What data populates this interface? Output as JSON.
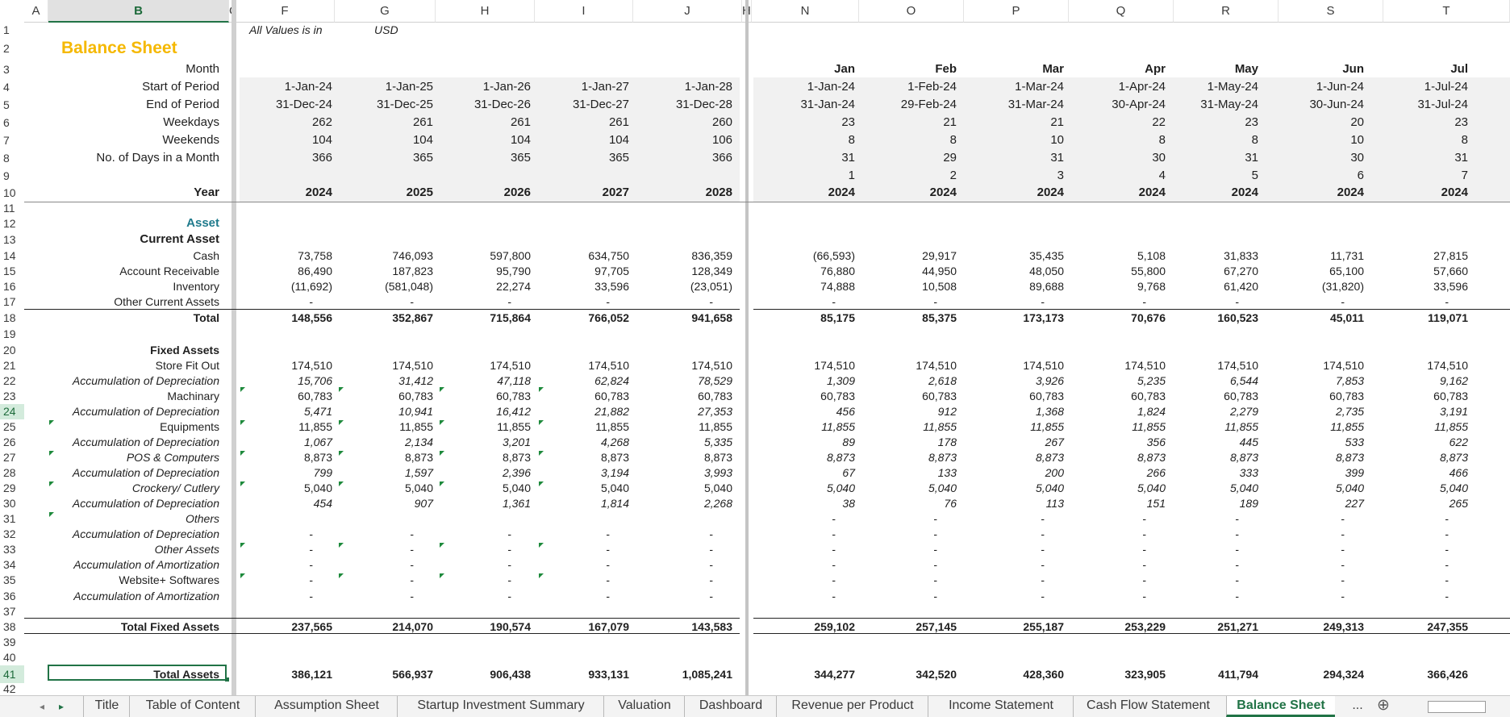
{
  "columns": [
    "A",
    "B",
    "CEE",
    "F",
    "G",
    "H",
    "I",
    "J",
    "HN",
    "N",
    "O",
    "P",
    "Q",
    "R",
    "S",
    "T"
  ],
  "rows": [
    "1",
    "2",
    "3",
    "4",
    "5",
    "6",
    "7",
    "8",
    "9",
    "10",
    "11",
    "12",
    "13",
    "14",
    "15",
    "16",
    "17",
    "18",
    "19",
    "20",
    "21",
    "22",
    "23",
    "24",
    "25",
    "26",
    "27",
    "28",
    "29",
    "30",
    "31",
    "32",
    "33",
    "34",
    "35",
    "36",
    "37",
    "38",
    "39",
    "40",
    "41",
    "42"
  ],
  "selected_cell": "B41",
  "header": {
    "title": "Balance Sheet",
    "values_note": "All Values is in",
    "currency": "USD"
  },
  "labels": {
    "month": "Month",
    "start": "Start of Period",
    "end": "End of Period",
    "weekdays": "Weekdays",
    "weekends": "Weekends",
    "days": "No. of Days in a Month",
    "year": "Year",
    "asset": "Asset",
    "current_asset": "Current Asset",
    "cash": "Cash",
    "ar": "Account Receivable",
    "inventory": "Inventory",
    "other_ca": "Other Current Assets",
    "total": "Total",
    "fixed_assets": "Fixed Assets",
    "store_fit": "Store Fit Out",
    "accum_dep": "Accumulation of Depreciation",
    "machinary": "Machinary",
    "equipments": "Equipments",
    "pos": "POS & Computers",
    "crockery": "Crockery/ Cutlery",
    "others": "Others",
    "other_assets": "Other Assets",
    "accum_amort": "Accumulation of Amortization",
    "website": "Website+ Softwares",
    "total_fixed": "Total Fixed Assets",
    "total_assets": "Total Assets"
  },
  "annual": {
    "start": [
      "1-Jan-24",
      "1-Jan-25",
      "1-Jan-26",
      "1-Jan-27",
      "1-Jan-28"
    ],
    "end": [
      "31-Dec-24",
      "31-Dec-25",
      "31-Dec-26",
      "31-Dec-27",
      "31-Dec-28"
    ],
    "weekdays": [
      "262",
      "261",
      "261",
      "261",
      "260"
    ],
    "weekends": [
      "104",
      "104",
      "104",
      "104",
      "106"
    ],
    "days": [
      "366",
      "365",
      "365",
      "365",
      "366"
    ],
    "year": [
      "2024",
      "2025",
      "2026",
      "2027",
      "2028"
    ],
    "cash": [
      "73,758",
      "746,093",
      "597,800",
      "634,750",
      "836,359"
    ],
    "ar": [
      "86,490",
      "187,823",
      "95,790",
      "97,705",
      "128,349"
    ],
    "inventory": [
      "(11,692)",
      "(581,048)",
      "22,274",
      "33,596",
      "(23,051)"
    ],
    "other_ca": [
      "-",
      "-",
      "-",
      "-",
      "-"
    ],
    "total": [
      "148,556",
      "352,867",
      "715,864",
      "766,052",
      "941,658"
    ],
    "store_fit": [
      "174,510",
      "174,510",
      "174,510",
      "174,510",
      "174,510"
    ],
    "dep1": [
      "15,706",
      "31,412",
      "47,118",
      "62,824",
      "78,529"
    ],
    "machinary": [
      "60,783",
      "60,783",
      "60,783",
      "60,783",
      "60,783"
    ],
    "dep2": [
      "5,471",
      "10,941",
      "16,412",
      "21,882",
      "27,353"
    ],
    "equipments": [
      "11,855",
      "11,855",
      "11,855",
      "11,855",
      "11,855"
    ],
    "dep3": [
      "1,067",
      "2,134",
      "3,201",
      "4,268",
      "5,335"
    ],
    "pos": [
      "8,873",
      "8,873",
      "8,873",
      "8,873",
      "8,873"
    ],
    "dep4": [
      "799",
      "1,597",
      "2,396",
      "3,194",
      "3,993"
    ],
    "crockery": [
      "5,040",
      "5,040",
      "5,040",
      "5,040",
      "5,040"
    ],
    "dep5": [
      "454",
      "907",
      "1,361",
      "1,814",
      "2,268"
    ],
    "others": [
      "",
      "",
      "",
      "",
      ""
    ],
    "dep6": [
      "-",
      "-",
      "-",
      "-",
      "-"
    ],
    "other_assets": [
      "-",
      "-",
      "-",
      "-",
      "-"
    ],
    "amort1": [
      "-",
      "-",
      "-",
      "-",
      "-"
    ],
    "website": [
      "-",
      "-",
      "-",
      "-",
      "-"
    ],
    "amort2": [
      "-",
      "-",
      "-",
      "-",
      "-"
    ],
    "total_fixed": [
      "237,565",
      "214,070",
      "190,574",
      "167,079",
      "143,583"
    ],
    "total_assets": [
      "386,121",
      "566,937",
      "906,438",
      "933,131",
      "1,085,241"
    ]
  },
  "monthly": {
    "month": [
      "Jan",
      "Feb",
      "Mar",
      "Apr",
      "May",
      "Jun",
      "Jul"
    ],
    "start": [
      "1-Jan-24",
      "1-Feb-24",
      "1-Mar-24",
      "1-Apr-24",
      "1-May-24",
      "1-Jun-24",
      "1-Jul-24"
    ],
    "end": [
      "31-Jan-24",
      "29-Feb-24",
      "31-Mar-24",
      "30-Apr-24",
      "31-May-24",
      "30-Jun-24",
      "31-Jul-24"
    ],
    "weekdays": [
      "23",
      "21",
      "21",
      "22",
      "23",
      "20",
      "23"
    ],
    "weekends": [
      "8",
      "8",
      "10",
      "8",
      "8",
      "10",
      "8"
    ],
    "days": [
      "31",
      "29",
      "31",
      "30",
      "31",
      "30",
      "31"
    ],
    "index": [
      "1",
      "2",
      "3",
      "4",
      "5",
      "6",
      "7"
    ],
    "year": [
      "2024",
      "2024",
      "2024",
      "2024",
      "2024",
      "2024",
      "2024"
    ],
    "cash": [
      "(66,593)",
      "29,917",
      "35,435",
      "5,108",
      "31,833",
      "11,731",
      "27,815"
    ],
    "ar": [
      "76,880",
      "44,950",
      "48,050",
      "55,800",
      "67,270",
      "65,100",
      "57,660"
    ],
    "inventory": [
      "74,888",
      "10,508",
      "89,688",
      "9,768",
      "61,420",
      "(31,820)",
      "33,596"
    ],
    "other_ca": [
      "-",
      "-",
      "-",
      "-",
      "-",
      "-",
      "-"
    ],
    "total": [
      "85,175",
      "85,375",
      "173,173",
      "70,676",
      "160,523",
      "45,011",
      "119,071"
    ],
    "store_fit": [
      "174,510",
      "174,510",
      "174,510",
      "174,510",
      "174,510",
      "174,510",
      "174,510"
    ],
    "dep1": [
      "1,309",
      "2,618",
      "3,926",
      "5,235",
      "6,544",
      "7,853",
      "9,162"
    ],
    "machinary": [
      "60,783",
      "60,783",
      "60,783",
      "60,783",
      "60,783",
      "60,783",
      "60,783"
    ],
    "dep2": [
      "456",
      "912",
      "1,368",
      "1,824",
      "2,279",
      "2,735",
      "3,191"
    ],
    "equipments": [
      "11,855",
      "11,855",
      "11,855",
      "11,855",
      "11,855",
      "11,855",
      "11,855"
    ],
    "dep3": [
      "89",
      "178",
      "267",
      "356",
      "445",
      "533",
      "622"
    ],
    "pos": [
      "8,873",
      "8,873",
      "8,873",
      "8,873",
      "8,873",
      "8,873",
      "8,873"
    ],
    "dep4": [
      "67",
      "133",
      "200",
      "266",
      "333",
      "399",
      "466"
    ],
    "crockery": [
      "5,040",
      "5,040",
      "5,040",
      "5,040",
      "5,040",
      "5,040",
      "5,040"
    ],
    "dep5": [
      "38",
      "76",
      "113",
      "151",
      "189",
      "227",
      "265"
    ],
    "others": [
      "-",
      "-",
      "-",
      "-",
      "-",
      "-",
      "-"
    ],
    "dep6": [
      "-",
      "-",
      "-",
      "-",
      "-",
      "-",
      "-"
    ],
    "other_assets": [
      "-",
      "-",
      "-",
      "-",
      "-",
      "-",
      "-"
    ],
    "amort1": [
      "-",
      "-",
      "-",
      "-",
      "-",
      "-",
      "-"
    ],
    "website": [
      "-",
      "-",
      "-",
      "-",
      "-",
      "-",
      "-"
    ],
    "amort2": [
      "-",
      "-",
      "-",
      "-",
      "-",
      "-",
      "-"
    ],
    "total_fixed": [
      "259,102",
      "257,145",
      "255,187",
      "253,229",
      "251,271",
      "249,313",
      "247,355"
    ],
    "total_assets": [
      "344,277",
      "342,520",
      "428,360",
      "323,905",
      "411,794",
      "294,324",
      "366,426"
    ]
  },
  "tabs": [
    "Title",
    "Table of Content",
    "Assumption Sheet",
    "Startup Investment Summary",
    "Valuation",
    "Dashboard",
    "Revenue per Product",
    "Income Statement",
    "Cash Flow Statement",
    "Balance Sheet"
  ],
  "active_tab": "Balance Sheet",
  "tab_controls": {
    "more": "...",
    "add": "⊕",
    "prev": "◂",
    "next": "▸"
  },
  "colors": {
    "title": "#f5b800",
    "asset_label": "#1f7a8c",
    "accent": "#217346",
    "note_triangle": "#1e8a3c"
  }
}
